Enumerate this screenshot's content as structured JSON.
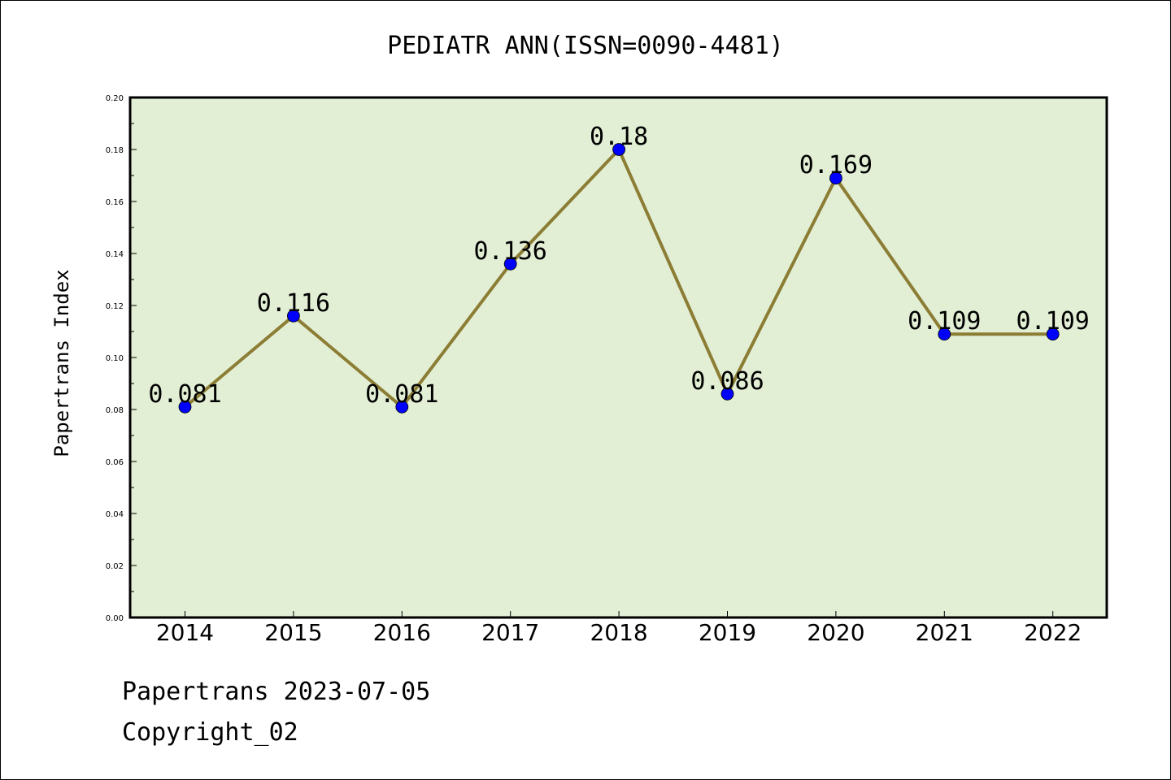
{
  "chart_data": {
    "type": "line",
    "title": "PEDIATR ANN(ISSN=0090-4481)",
    "xlabel": "",
    "ylabel": "Papertrans Index",
    "categories": [
      "2014",
      "2015",
      "2016",
      "2017",
      "2018",
      "2019",
      "2020",
      "2021",
      "2022"
    ],
    "series": [
      {
        "values": [
          0.081,
          0.116,
          0.081,
          0.136,
          0.18,
          0.086,
          0.169,
          0.109,
          0.109
        ]
      }
    ],
    "data_labels": [
      "0.081",
      "0.116",
      "0.081",
      "0.136",
      "0.18",
      "0.086",
      "0.169",
      "0.109",
      "0.109"
    ],
    "ylim": [
      0,
      0.2
    ],
    "yticks": [
      "0.00",
      "0.02",
      "0.04",
      "0.06",
      "0.08",
      "0.10",
      "0.12",
      "0.14",
      "0.16",
      "0.18",
      "0.20"
    ],
    "grid": false,
    "colors": {
      "plot_background": "#e2efd5",
      "line": "#8c7d35",
      "marker": "#0000ff"
    }
  },
  "footer": {
    "date_line": "Papertrans 2023-07-05",
    "copyright": "Copyright_02"
  }
}
